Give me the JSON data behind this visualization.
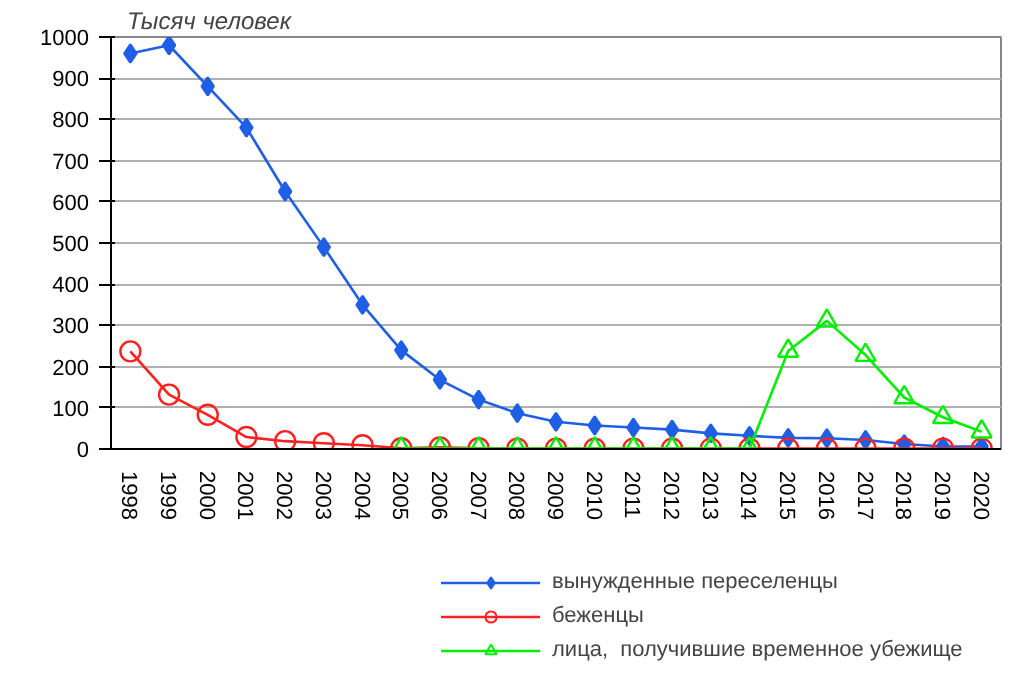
{
  "chart_data": {
    "type": "line",
    "ylabel": "Тысяч человек",
    "categories": [
      "1998",
      "1999",
      "2000",
      "2001",
      "2002",
      "2003",
      "2004",
      "2005",
      "2006",
      "2007",
      "2008",
      "2009",
      "2010",
      "2011",
      "2012",
      "2013",
      "2014",
      "2015",
      "2016",
      "2017",
      "2018",
      "2019",
      "2020"
    ],
    "series": [
      {
        "name": "вынужденные переселенцы",
        "color": "#1f5fe6",
        "marker": "diamond",
        "values": [
          960,
          980,
          880,
          780,
          625,
          490,
          350,
          240,
          168,
          120,
          87,
          66,
          57,
          52,
          47,
          38,
          32,
          27,
          26,
          22,
          12,
          6,
          6
        ]
      },
      {
        "name": "беженцы",
        "color": "#ff2020",
        "marker": "circle",
        "values": [
          237,
          132,
          83,
          29,
          19,
          14,
          9,
          2,
          4,
          2,
          1,
          1,
          1,
          1,
          1,
          1,
          1,
          1,
          1,
          1,
          1,
          1,
          1
        ]
      },
      {
        "name": "лица,  получившие временное убежище",
        "color": "#00ee00",
        "marker": "triangle",
        "values": [
          null,
          null,
          null,
          null,
          null,
          null,
          null,
          1,
          1,
          1,
          1,
          1,
          1,
          1,
          1,
          1,
          1,
          238,
          311,
          228,
          125,
          77,
          42
        ]
      }
    ],
    "ylim": [
      0,
      1000
    ],
    "yticks": [
      0,
      100,
      200,
      300,
      400,
      500,
      600,
      700,
      800,
      900,
      1000
    ],
    "grid": "y",
    "legend": "bottom",
    "line_style": "solid"
  }
}
